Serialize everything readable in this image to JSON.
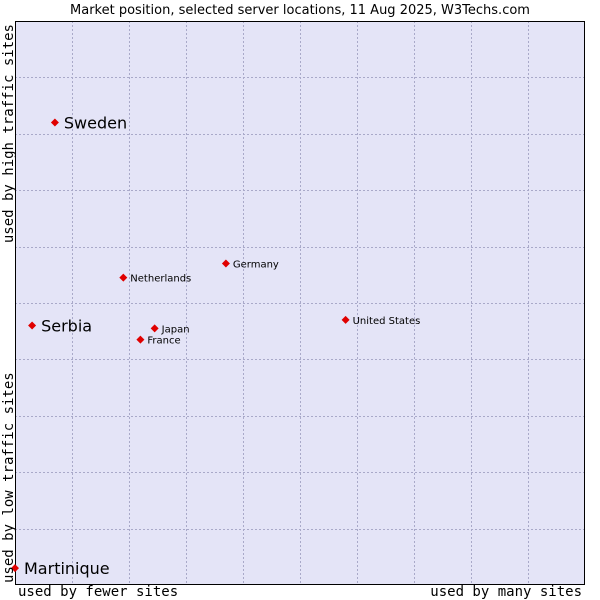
{
  "chart_data": {
    "type": "scatter",
    "title": "Market position, selected server locations, 11 Aug 2025, W3Techs.com",
    "xlabel_low": "used by fewer sites",
    "xlabel_high": "used by many sites",
    "ylabel_low": "used by low traffic sites",
    "ylabel_high": "used by high traffic sites",
    "xlim": [
      0,
      100
    ],
    "ylim": [
      0,
      100
    ],
    "grid": true,
    "points": [
      {
        "name": "Sweden",
        "x": 7,
        "y": 82,
        "emphasis": true
      },
      {
        "name": "Germany",
        "x": 37,
        "y": 57,
        "emphasis": false
      },
      {
        "name": "Netherlands",
        "x": 19,
        "y": 54.5,
        "emphasis": false
      },
      {
        "name": "Serbia",
        "x": 3,
        "y": 46,
        "emphasis": true
      },
      {
        "name": "United States",
        "x": 58,
        "y": 47,
        "emphasis": false
      },
      {
        "name": "Japan",
        "x": 24.5,
        "y": 45.5,
        "emphasis": false
      },
      {
        "name": "France",
        "x": 22,
        "y": 43.5,
        "emphasis": false
      },
      {
        "name": "Martinique",
        "x": 0,
        "y": 3,
        "emphasis": true
      }
    ],
    "colors": {
      "plot_background": "#e4e4f7",
      "grid": "#a9a9c9",
      "marker": "#e00000"
    }
  }
}
